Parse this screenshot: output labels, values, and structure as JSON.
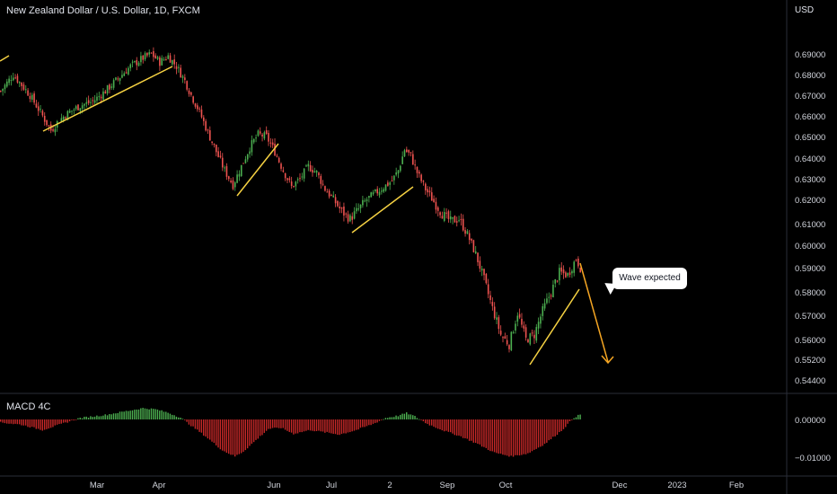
{
  "header": {
    "symbol_title": "New Zealand Dollar / U.S. Dollar, 1D, FXCM",
    "currency": "USD",
    "indicator_name": "MACD 4C"
  },
  "annotation": {
    "text": "Wave expected"
  },
  "colors": {
    "background": "#000000",
    "up": "#4caf50",
    "down": "#ef5350",
    "macd_up": "#4caf50",
    "macd_down": "#c62828",
    "trendline": "#f5d142",
    "projection": "#f5a623",
    "axis_text": "#d1d4dc"
  },
  "chart_data": [
    {
      "type": "candlestick",
      "x_ticks": [
        "Mar",
        "Apr",
        "Jun",
        "Jul",
        "2",
        "Sep",
        "Oct",
        "Dec",
        "2023",
        "Feb"
      ],
      "y_ticks": [
        "0.69000",
        "0.68000",
        "0.67000",
        "0.66000",
        "0.65000",
        "0.64000",
        "0.63000",
        "0.62000",
        "0.61000",
        "0.60000",
        "0.59000",
        "0.58000",
        "0.57000",
        "0.56000",
        "0.55200",
        "0.54400"
      ],
      "ylim": [
        0.544,
        0.7
      ],
      "close_path": [
        [
          0,
          0.672
        ],
        [
          3,
          0.676
        ],
        [
          6,
          0.68
        ],
        [
          10,
          0.675
        ],
        [
          14,
          0.67
        ],
        [
          20,
          0.66
        ],
        [
          24,
          0.653
        ],
        [
          28,
          0.658
        ],
        [
          33,
          0.662
        ],
        [
          38,
          0.665
        ],
        [
          44,
          0.667
        ],
        [
          50,
          0.672
        ],
        [
          56,
          0.678
        ],
        [
          62,
          0.684
        ],
        [
          68,
          0.688
        ],
        [
          72,
          0.69
        ],
        [
          76,
          0.686
        ],
        [
          80,
          0.689
        ],
        [
          84,
          0.684
        ],
        [
          88,
          0.677
        ],
        [
          91,
          0.67
        ],
        [
          95,
          0.662
        ],
        [
          99,
          0.652
        ],
        [
          103,
          0.643
        ],
        [
          107,
          0.634
        ],
        [
          111,
          0.627
        ],
        [
          115,
          0.636
        ],
        [
          119,
          0.645
        ],
        [
          123,
          0.651
        ],
        [
          127,
          0.65
        ],
        [
          131,
          0.643
        ],
        [
          135,
          0.634
        ],
        [
          139,
          0.626
        ],
        [
          143,
          0.63
        ],
        [
          147,
          0.636
        ],
        [
          151,
          0.633
        ],
        [
          155,
          0.625
        ],
        [
          159,
          0.62
        ],
        [
          163,
          0.615
        ],
        [
          167,
          0.612
        ],
        [
          171,
          0.616
        ],
        [
          175,
          0.62
        ],
        [
          179,
          0.623
        ],
        [
          183,
          0.626
        ],
        [
          187,
          0.629
        ],
        [
          190,
          0.634
        ],
        [
          193,
          0.644
        ],
        [
          196,
          0.641
        ],
        [
          199,
          0.633
        ],
        [
          203,
          0.625
        ],
        [
          207,
          0.619
        ],
        [
          211,
          0.614
        ],
        [
          215,
          0.611
        ],
        [
          219,
          0.612
        ],
        [
          223,
          0.605
        ],
        [
          227,
          0.596
        ],
        [
          231,
          0.585
        ],
        [
          235,
          0.573
        ],
        [
          239,
          0.562
        ],
        [
          243,
          0.558
        ],
        [
          247,
          0.571
        ],
        [
          251,
          0.56
        ],
        [
          255,
          0.562
        ],
        [
          259,
          0.572
        ],
        [
          263,
          0.58
        ],
        [
          267,
          0.588
        ],
        [
          271,
          0.587
        ],
        [
          275,
          0.594
        ],
        [
          277,
          0.59
        ]
      ],
      "annotations": [
        "Wave expected"
      ]
    },
    {
      "type": "bar",
      "title": "MACD 4C",
      "y_ticks": [
        "0.00000",
        "−0.01000"
      ],
      "ylim": [
        -0.0118,
        0.0046
      ],
      "points": [
        [
          0,
          -0.0008
        ],
        [
          10,
          -0.0014
        ],
        [
          20,
          -0.0028
        ],
        [
          28,
          -0.0014
        ],
        [
          38,
          0.0004
        ],
        [
          50,
          0.0012
        ],
        [
          60,
          0.0022
        ],
        [
          68,
          0.003
        ],
        [
          74,
          0.0027
        ],
        [
          80,
          0.0018
        ],
        [
          86,
          0.0005
        ],
        [
          90,
          -0.0012
        ],
        [
          98,
          -0.0045
        ],
        [
          106,
          -0.0082
        ],
        [
          112,
          -0.0098
        ],
        [
          116,
          -0.0085
        ],
        [
          122,
          -0.0055
        ],
        [
          128,
          -0.0025
        ],
        [
          134,
          -0.0022
        ],
        [
          140,
          -0.0038
        ],
        [
          148,
          -0.0028
        ],
        [
          156,
          -0.0035
        ],
        [
          162,
          -0.004
        ],
        [
          170,
          -0.0028
        ],
        [
          178,
          -0.0012
        ],
        [
          184,
          0.0004
        ],
        [
          190,
          0.001
        ],
        [
          194,
          0.0017
        ],
        [
          198,
          0.0008
        ],
        [
          204,
          -0.0012
        ],
        [
          212,
          -0.003
        ],
        [
          220,
          -0.0045
        ],
        [
          228,
          -0.0065
        ],
        [
          236,
          -0.0088
        ],
        [
          244,
          -0.0098
        ],
        [
          252,
          -0.009
        ],
        [
          260,
          -0.0065
        ],
        [
          268,
          -0.003
        ],
        [
          274,
          0.0005
        ],
        [
          277,
          0.0013
        ]
      ]
    }
  ]
}
